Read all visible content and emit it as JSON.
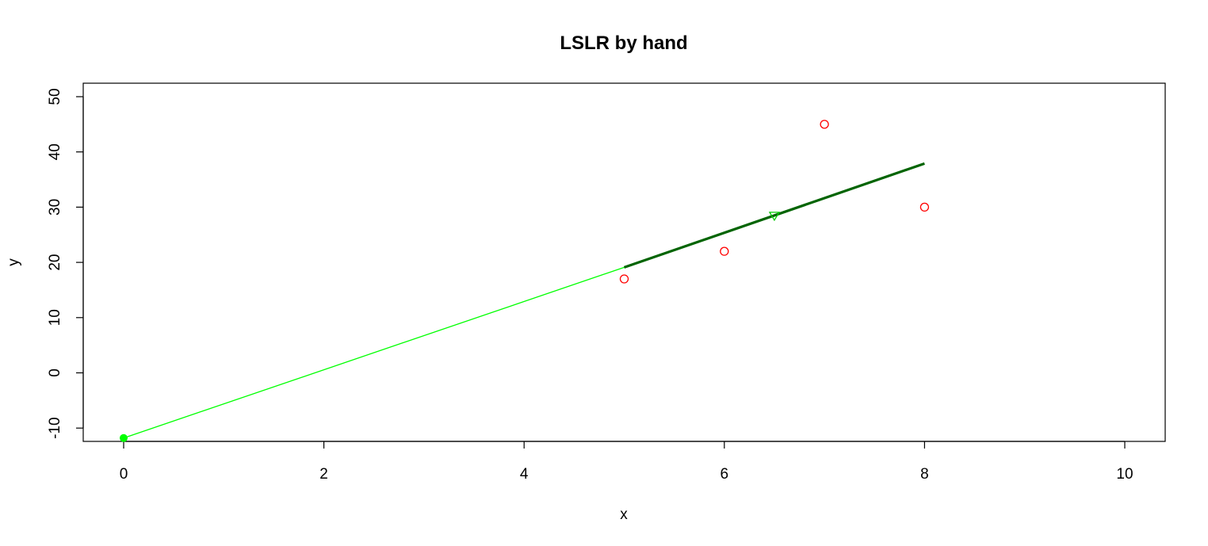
{
  "chart_data": {
    "type": "scatter",
    "title": "LSLR by hand",
    "xlabel": "x",
    "ylabel": "y",
    "xlim": [
      0,
      10
    ],
    "ylim": [
      -10,
      50
    ],
    "xticks": [
      "0",
      "2",
      "4",
      "6",
      "8",
      "10"
    ],
    "yticks": [
      "-10",
      "0",
      "10",
      "20",
      "30",
      "40",
      "50"
    ],
    "points": [
      {
        "x": 5,
        "y": 17
      },
      {
        "x": 6,
        "y": 22
      },
      {
        "x": 7,
        "y": 45
      },
      {
        "x": 8,
        "y": 30
      }
    ],
    "intercept_point": {
      "x": 0,
      "y": -11.8
    },
    "mean_point": {
      "x": 6.5,
      "y": 28.5
    },
    "extended_line": {
      "x": [
        0,
        5
      ],
      "y": [
        -11.8,
        19.1
      ]
    },
    "fit_line": {
      "x": [
        5,
        8
      ],
      "y": [
        19.1,
        37.9
      ]
    },
    "colors": {
      "points": "#ff0000",
      "extended_line": "#00ff00",
      "fit_line": "#006400",
      "mean_line": "#00cc00",
      "intercept": "#00ff00"
    }
  }
}
